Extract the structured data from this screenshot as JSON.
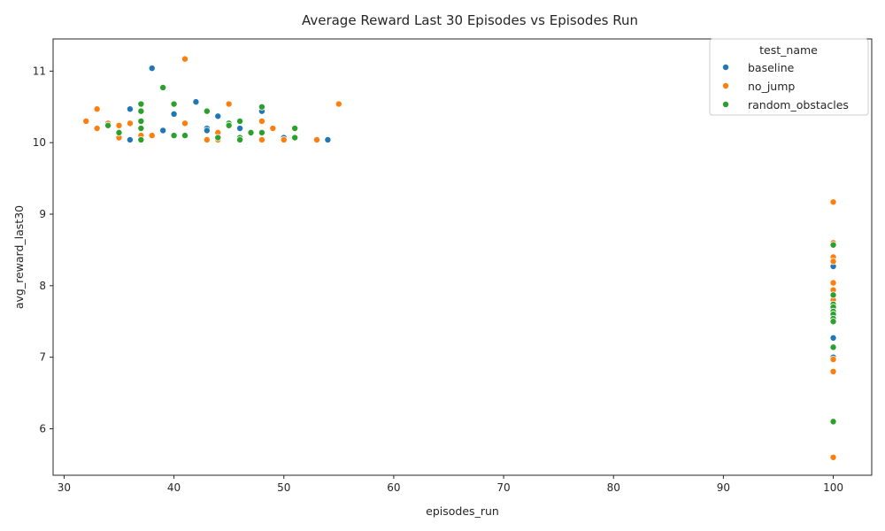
{
  "chart_data": {
    "type": "scatter",
    "title": "Average Reward Last 30 Episodes vs Episodes Run",
    "xlabel": "episodes_run",
    "ylabel": "avg_reward_last30",
    "xlim": [
      29,
      103.5
    ],
    "ylim": [
      5.35,
      11.45
    ],
    "xticks": [
      30,
      40,
      50,
      60,
      70,
      80,
      90,
      100
    ],
    "yticks": [
      6,
      7,
      8,
      9,
      10,
      11
    ],
    "grid": false,
    "legend": {
      "title": "test_name",
      "placement": "top-right"
    },
    "series": [
      {
        "name": "baseline",
        "color": "#1f77b4",
        "points": [
          [
            36,
            10.47
          ],
          [
            36,
            10.04
          ],
          [
            38,
            11.04
          ],
          [
            39,
            10.17
          ],
          [
            40,
            10.4
          ],
          [
            42,
            10.57
          ],
          [
            43,
            10.2
          ],
          [
            43,
            10.17
          ],
          [
            44,
            10.37
          ],
          [
            46,
            10.2
          ],
          [
            48,
            10.44
          ],
          [
            50,
            10.07
          ],
          [
            54,
            10.04
          ],
          [
            100,
            8.27
          ],
          [
            100,
            7.27
          ],
          [
            100,
            7.0
          ]
        ]
      },
      {
        "name": "no_jump",
        "color": "#ff7f0e",
        "points": [
          [
            32,
            10.3
          ],
          [
            33,
            10.47
          ],
          [
            33,
            10.2
          ],
          [
            34,
            10.27
          ],
          [
            35,
            10.07
          ],
          [
            35,
            10.24
          ],
          [
            36,
            10.27
          ],
          [
            37,
            10.1
          ],
          [
            38,
            10.1
          ],
          [
            41,
            11.17
          ],
          [
            41,
            10.27
          ],
          [
            43,
            10.04
          ],
          [
            44,
            10.14
          ],
          [
            44,
            10.04
          ],
          [
            45,
            10.54
          ],
          [
            48,
            10.3
          ],
          [
            48,
            10.04
          ],
          [
            49,
            10.2
          ],
          [
            50,
            10.04
          ],
          [
            53,
            10.04
          ],
          [
            55,
            10.54
          ],
          [
            100,
            9.17
          ],
          [
            100,
            8.6
          ],
          [
            100,
            8.4
          ],
          [
            100,
            8.34
          ],
          [
            100,
            8.04
          ],
          [
            100,
            7.94
          ],
          [
            100,
            7.8
          ],
          [
            100,
            6.97
          ],
          [
            100,
            6.8
          ],
          [
            100,
            5.6
          ]
        ]
      },
      {
        "name": "random_obstacles",
        "color": "#2ca02c",
        "points": [
          [
            34,
            10.24
          ],
          [
            35,
            10.14
          ],
          [
            37,
            10.54
          ],
          [
            37,
            10.44
          ],
          [
            37,
            10.3
          ],
          [
            37,
            10.2
          ],
          [
            37,
            10.04
          ],
          [
            39,
            10.77
          ],
          [
            40,
            10.54
          ],
          [
            40,
            10.1
          ],
          [
            41,
            10.1
          ],
          [
            43,
            10.44
          ],
          [
            44,
            10.07
          ],
          [
            45,
            10.27
          ],
          [
            45,
            10.24
          ],
          [
            46,
            10.3
          ],
          [
            46,
            10.07
          ],
          [
            46,
            10.04
          ],
          [
            47,
            10.14
          ],
          [
            48,
            10.5
          ],
          [
            48,
            10.14
          ],
          [
            51,
            10.2
          ],
          [
            51,
            10.07
          ],
          [
            100,
            8.57
          ],
          [
            100,
            7.87
          ],
          [
            100,
            7.74
          ],
          [
            100,
            7.7
          ],
          [
            100,
            7.64
          ],
          [
            100,
            7.6
          ],
          [
            100,
            7.54
          ],
          [
            100,
            7.5
          ],
          [
            100,
            7.14
          ],
          [
            100,
            6.1
          ]
        ]
      }
    ]
  }
}
